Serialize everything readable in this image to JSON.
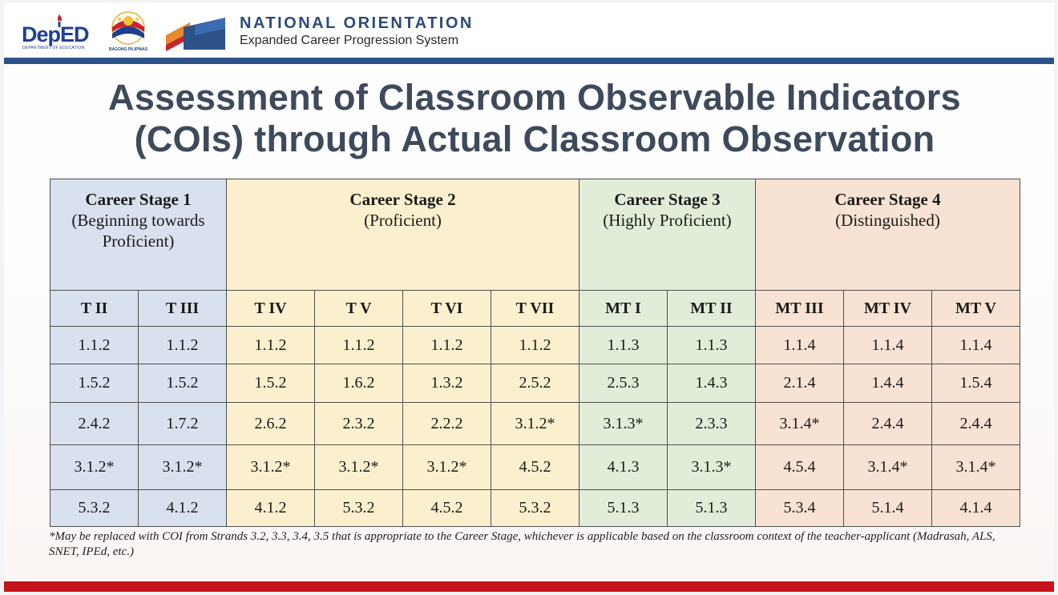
{
  "header": {
    "deped_logo_text": "DepED",
    "deped_logo_sub": "DEPARTMENT OF EDUCATION",
    "bagong_pilipinas_text": "BAGONG PILIPINAS",
    "org_title": "NATIONAL ORIENTATION",
    "org_subtitle": "Expanded Career Progression System",
    "colors": {
      "bar": "#2c5288",
      "bottom_bar": "#c6131b"
    }
  },
  "title_line1": "Assessment of Classroom Observable Indicators",
  "title_line2": "(COIs) through Actual Classroom Observation",
  "table": {
    "stages": [
      {
        "name": "Career Stage 1",
        "desc": "(Beginning towards Proficient)",
        "color": "#d9e1ee",
        "span": 2
      },
      {
        "name": "Career Stage 2",
        "desc": "(Proficient)",
        "color": "#fbf0cd",
        "span": 4
      },
      {
        "name": "Career Stage 3",
        "desc": "(Highly Proficient)",
        "color": "#e1edd9",
        "span": 2
      },
      {
        "name": "Career Stage 4",
        "desc": "(Distinguished)",
        "color": "#f7e2d3",
        "span": 3
      }
    ],
    "positions": [
      "T II",
      "T III",
      "T IV",
      "T V",
      "T VI",
      "T VII",
      "MT I",
      "MT II",
      "MT III",
      "MT IV",
      "MT V"
    ],
    "rows": [
      [
        "1.1.2",
        "1.1.2",
        "1.1.2",
        "1.1.2",
        "1.1.2",
        "1.1.2",
        "1.1.3",
        "1.1.3",
        "1.1.4",
        "1.1.4",
        "1.1.4"
      ],
      [
        "1.5.2",
        "1.5.2",
        "1.5.2",
        "1.6.2",
        "1.3.2",
        "2.5.2",
        "2.5.3",
        "1.4.3",
        "2.1.4",
        "1.4.4",
        "1.5.4"
      ],
      [
        "2.4.2",
        "1.7.2",
        "2.6.2",
        "2.3.2",
        "2.2.2",
        "3.1.2*",
        "3.1.3*",
        "2.3.3",
        "3.1.4*",
        "2.4.4",
        "2.4.4"
      ],
      [
        "3.1.2*",
        "3.1.2*",
        "3.1.2*",
        "3.1.2*",
        "3.1.2*",
        "4.5.2",
        "4.1.3",
        "3.1.3*",
        "4.5.4",
        "3.1.4*",
        "3.1.4*"
      ],
      [
        "5.3.2",
        "4.1.2",
        "4.1.2",
        "5.3.2",
        "4.5.2",
        "5.3.2",
        "5.1.3",
        "5.1.3",
        "5.3.4",
        "5.1.4",
        "4.1.4"
      ]
    ]
  },
  "footnote": "*May be replaced with COI from Strands 3.2, 3.3, 3.4, 3.5 that is appropriate to the Career Stage, whichever is applicable based on the classroom context of the teacher-applicant (Madrasah, ALS, SNET, IPEd, etc.)"
}
